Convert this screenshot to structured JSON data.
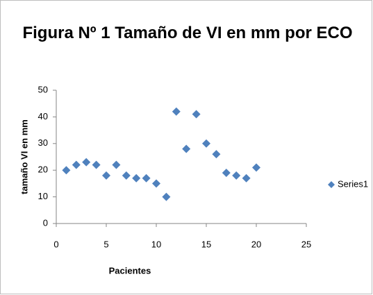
{
  "chart_data": {
    "type": "scatter",
    "title": "Figura Nº 1 Tamaño de VI en mm por ECO",
    "xlabel": "Pacientes",
    "ylabel": "tamaño VI en mm",
    "series": [
      {
        "name": "Series1",
        "color": "#4f81bd",
        "x": [
          1,
          2,
          3,
          4,
          5,
          6,
          7,
          8,
          9,
          10,
          11,
          12,
          13,
          14,
          15,
          16,
          17,
          18,
          19,
          20
        ],
        "values": [
          20,
          22,
          23,
          22,
          18,
          22,
          18,
          17,
          17,
          15,
          10,
          42,
          28,
          41,
          30,
          26,
          19,
          18,
          17,
          21
        ]
      }
    ],
    "xlim": [
      0,
      25
    ],
    "xticks": [
      0,
      5,
      10,
      15,
      20,
      25
    ],
    "ylim": [
      0,
      50
    ],
    "yticks": [
      0,
      10,
      20,
      30,
      40,
      50
    ],
    "grid": false,
    "legend": "right"
  }
}
